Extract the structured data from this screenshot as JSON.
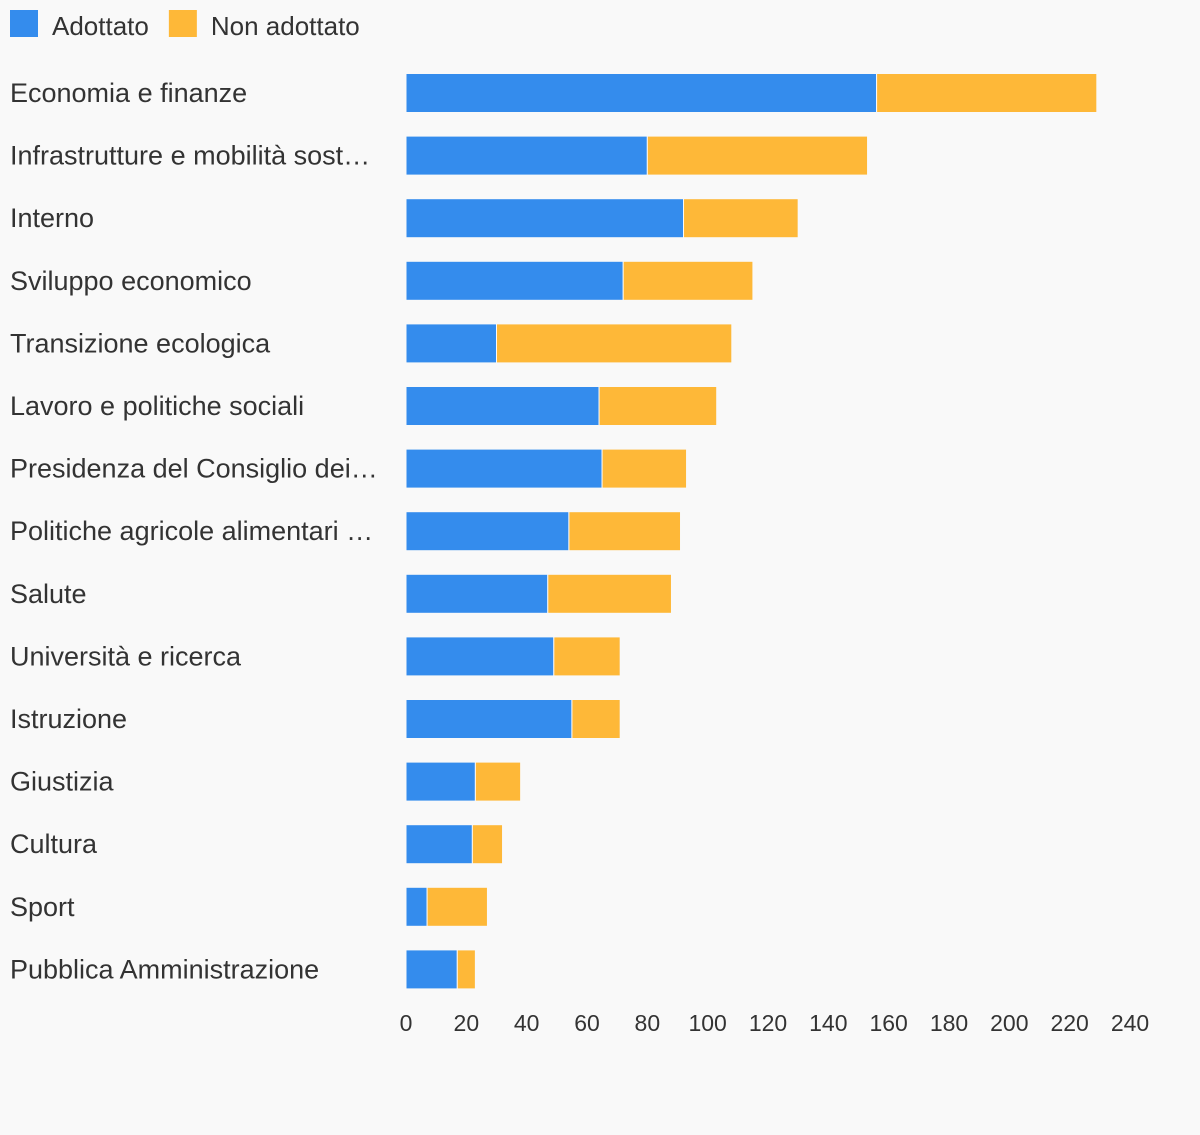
{
  "chart_data": {
    "type": "bar",
    "orientation": "horizontal",
    "stacked": true,
    "categories": [
      "Economia e finanze",
      "Infrastrutture e mobilità sost…",
      "Interno",
      "Sviluppo economico",
      "Transizione ecologica",
      "Lavoro e politiche sociali",
      "Presidenza del Consiglio dei…",
      "Politiche agricole alimentari …",
      "Salute",
      "Università e ricerca",
      "Istruzione",
      "Giustizia",
      "Cultura",
      "Sport",
      "Pubblica Amministrazione"
    ],
    "series": [
      {
        "name": "Adottato",
        "color": "#348ced",
        "values": [
          156,
          80,
          92,
          72,
          30,
          64,
          65,
          54,
          47,
          49,
          55,
          23,
          22,
          7,
          17
        ]
      },
      {
        "name": "Non adottato",
        "color": "#feb838",
        "values": [
          73,
          73,
          38,
          43,
          78,
          39,
          28,
          37,
          41,
          22,
          16,
          15,
          10,
          20,
          6
        ]
      }
    ],
    "xlim": [
      0,
      240
    ],
    "xticks": [
      0,
      20,
      40,
      60,
      80,
      100,
      120,
      140,
      160,
      180,
      200,
      220,
      240
    ],
    "grid": false,
    "legend": "top-left",
    "title": "",
    "xlabel": "",
    "ylabel": ""
  }
}
